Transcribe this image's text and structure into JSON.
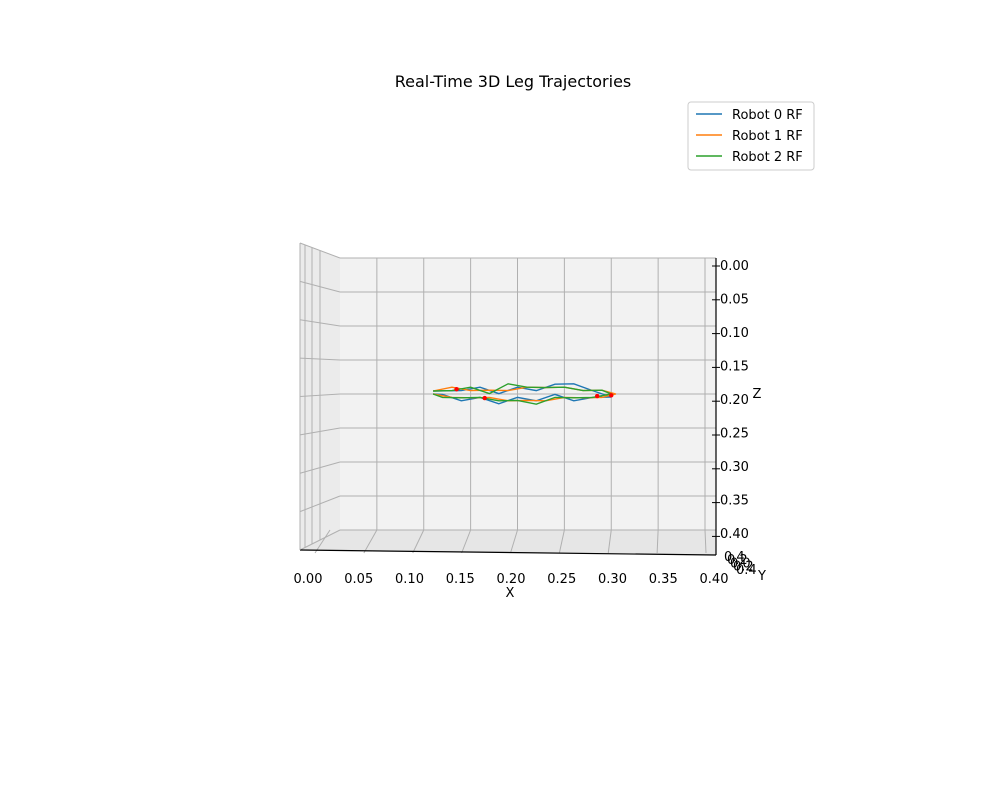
{
  "chart_data": {
    "type": "line",
    "projection": "3d",
    "title": "Real-Time 3D Leg Trajectories",
    "xlabel": "X",
    "ylabel": "Y",
    "zlabel": "Z",
    "xlim": [
      0.0,
      0.4
    ],
    "zlim": [
      -0.4,
      0.0
    ],
    "x_ticks": [
      "0.00",
      "0.05",
      "0.10",
      "0.15",
      "0.20",
      "0.25",
      "0.30",
      "0.35",
      "0.40"
    ],
    "z_ticks": [
      "0.00",
      "0.05",
      "0.10",
      "0.15",
      "0.20",
      "0.25",
      "0.30",
      "0.35",
      "0.40"
    ],
    "y_ticks": [
      "0.4",
      "0.2",
      "0.0",
      "0.2",
      "0.4"
    ],
    "grid": true,
    "legend_position": "top-right",
    "colors": {
      "robot0": "#1f77b4",
      "robot1": "#ff7f0e",
      "robot2": "#2ca02c",
      "marker": "#ff0000",
      "pane": "#f2f2f2",
      "grid": "#b0b0b0"
    },
    "series": [
      {
        "name": "Robot 0 RF",
        "color": "#1f77b4",
        "x": [
          0.11,
          0.14,
          0.16,
          0.18,
          0.2,
          0.22,
          0.24,
          0.26,
          0.28,
          0.3,
          0.28,
          0.26,
          0.24,
          0.22,
          0.2,
          0.18,
          0.16,
          0.14,
          0.12,
          0.11
        ],
        "z": [
          -0.2,
          -0.195,
          -0.19,
          -0.195,
          -0.19,
          -0.195,
          -0.19,
          -0.185,
          -0.195,
          -0.2,
          -0.205,
          -0.21,
          -0.205,
          -0.21,
          -0.205,
          -0.21,
          -0.205,
          -0.21,
          -0.205,
          -0.2
        ]
      },
      {
        "name": "Robot 1 RF",
        "color": "#ff7f0e",
        "x": [
          0.11,
          0.13,
          0.15,
          0.17,
          0.19,
          0.21,
          0.23,
          0.25,
          0.27,
          0.29,
          0.305,
          0.29,
          0.27,
          0.25,
          0.23,
          0.21,
          0.19,
          0.17,
          0.15,
          0.13,
          0.11
        ],
        "z": [
          -0.2,
          -0.19,
          -0.195,
          -0.19,
          -0.195,
          -0.19,
          -0.195,
          -0.19,
          -0.195,
          -0.19,
          -0.2,
          -0.205,
          -0.21,
          -0.205,
          -0.21,
          -0.205,
          -0.21,
          -0.205,
          -0.21,
          -0.205,
          -0.2
        ]
      },
      {
        "name": "Robot 2 RF",
        "color": "#2ca02c",
        "x": [
          0.11,
          0.13,
          0.15,
          0.17,
          0.19,
          0.21,
          0.23,
          0.25,
          0.27,
          0.29,
          0.3,
          0.28,
          0.26,
          0.24,
          0.22,
          0.2,
          0.18,
          0.16,
          0.14,
          0.12,
          0.11
        ],
        "z": [
          -0.2,
          -0.195,
          -0.19,
          -0.195,
          -0.185,
          -0.19,
          -0.195,
          -0.19,
          -0.195,
          -0.19,
          -0.2,
          -0.205,
          -0.21,
          -0.205,
          -0.215,
          -0.205,
          -0.21,
          -0.205,
          -0.21,
          -0.205,
          -0.2
        ]
      }
    ],
    "current_points": [
      {
        "x": 0.285,
        "z": -0.203
      },
      {
        "x": 0.3,
        "z": -0.202
      },
      {
        "x": 0.135,
        "z": -0.193
      },
      {
        "x": 0.165,
        "z": -0.206
      }
    ]
  }
}
